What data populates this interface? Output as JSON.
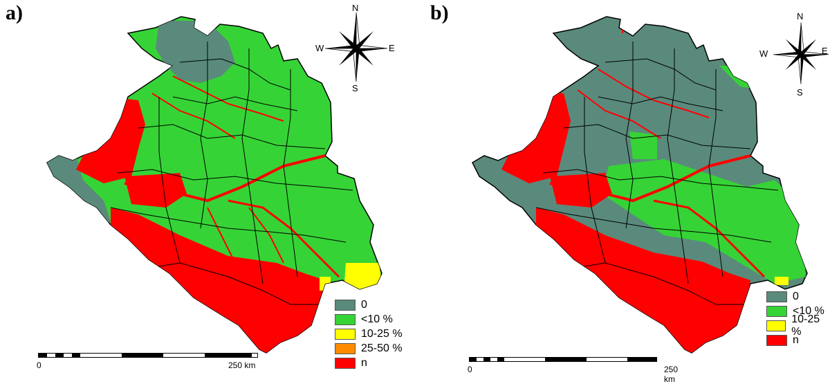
{
  "panels": [
    {
      "label": "a)",
      "compass": {
        "n": "N",
        "s": "S",
        "e": "E",
        "w": "W"
      },
      "legend": [
        {
          "label": "0",
          "color": "#5a8a7c"
        },
        {
          "label": "<10 %",
          "color": "#36d336"
        },
        {
          "label": "10-25 %",
          "color": "#ffff00"
        },
        {
          "label": "25-50 %",
          "color": "#ff8c00"
        },
        {
          "label": "n",
          "color": "#ff0000"
        }
      ],
      "scale": {
        "start": "0",
        "end": "250 km"
      }
    },
    {
      "label": "b)",
      "compass": {
        "n": "N",
        "s": "S",
        "e": "E",
        "w": "W"
      },
      "legend": [
        {
          "label": "0",
          "color": "#5a8a7c"
        },
        {
          "label": "<10 %",
          "color": "#36d336"
        },
        {
          "label": "10-25 %",
          "color": "#ffff00"
        },
        {
          "label": "n",
          "color": "#ff0000"
        }
      ],
      "scale": {
        "start": "0",
        "end": "250 km"
      }
    }
  ],
  "colors": {
    "zero": "#5a8a7c",
    "low": "#36d336",
    "mid": "#ffff00",
    "high": "#ff8c00",
    "n": "#ff0000",
    "border": "#000000"
  }
}
